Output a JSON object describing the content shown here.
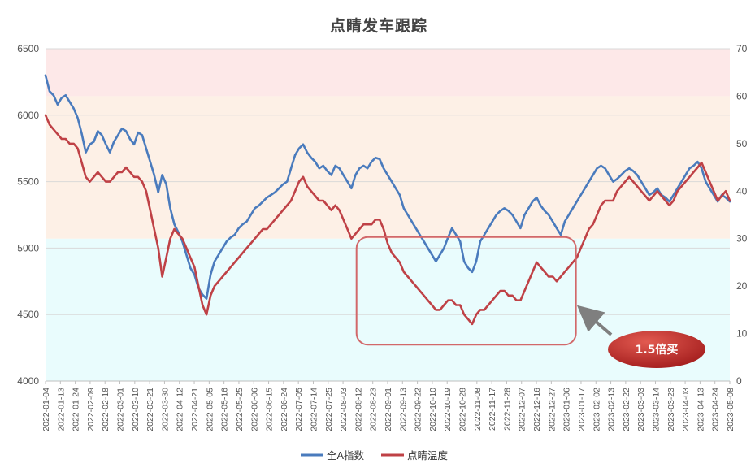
{
  "chart_data": {
    "type": "line",
    "title": "点睛发车跟踪",
    "y_left": {
      "lim": [
        4000,
        6500
      ],
      "ticks": [
        4000,
        4500,
        5000,
        5500,
        6000,
        6500
      ]
    },
    "y_right": {
      "lim": [
        0,
        70
      ],
      "ticks": [
        0,
        10,
        20,
        30,
        40,
        50,
        60,
        70
      ]
    },
    "x_tick_labels": [
      "2022-01-04",
      "2022-01-13",
      "2022-01-24",
      "2022-02-09",
      "2022-02-18",
      "2022-03-01",
      "2022-03-10",
      "2022-03-21",
      "2022-03-30",
      "2022-04-12",
      "2022-04-21",
      "2022-05-05",
      "2022-05-16",
      "2022-05-25",
      "2022-06-06",
      "2022-06-15",
      "2022-06-24",
      "2022-07-05",
      "2022-07-14",
      "2022-07-25",
      "2022-08-03",
      "2022-08-12",
      "2022-08-23",
      "2022-09-01",
      "2022-09-13",
      "2022-09-22",
      "2022-10-10",
      "2022-10-19",
      "2022-10-28",
      "2022-11-08",
      "2022-11-17",
      "2022-11-28",
      "2022-12-07",
      "2022-12-16",
      "2022-12-27",
      "2023-01-06",
      "2023-01-17",
      "2023-02-02",
      "2023-02-13",
      "2023-02-22",
      "2023-03-03",
      "2023-03-14",
      "2023-03-23",
      "2023-04-03",
      "2023-04-13",
      "2023-04-24",
      "2023-05-08"
    ],
    "bands": [
      {
        "axis": "right",
        "from": 0,
        "to": 30,
        "color": "#e9fcfd"
      },
      {
        "axis": "right",
        "from": 30,
        "to": 60,
        "color": "#fdf0e6"
      },
      {
        "axis": "right",
        "from": 60,
        "to": 70,
        "color": "#fde8e8"
      }
    ],
    "grid": true,
    "legend_position": "bottom",
    "series": [
      {
        "name": "全A指数",
        "axis": "left",
        "color": "#4a7bbd",
        "values": [
          6300,
          6180,
          6150,
          6080,
          6130,
          6150,
          6100,
          6050,
          5980,
          5860,
          5720,
          5780,
          5800,
          5880,
          5850,
          5780,
          5720,
          5800,
          5850,
          5900,
          5880,
          5820,
          5780,
          5870,
          5850,
          5750,
          5650,
          5550,
          5420,
          5550,
          5480,
          5300,
          5180,
          5120,
          5050,
          4950,
          4850,
          4800,
          4700,
          4650,
          4620,
          4800,
          4900,
          4950,
          5000,
          5050,
          5080,
          5100,
          5150,
          5180,
          5200,
          5250,
          5300,
          5320,
          5350,
          5380,
          5400,
          5420,
          5450,
          5480,
          5500,
          5600,
          5700,
          5750,
          5780,
          5720,
          5680,
          5650,
          5600,
          5620,
          5580,
          5550,
          5620,
          5600,
          5550,
          5500,
          5450,
          5550,
          5600,
          5620,
          5600,
          5650,
          5680,
          5670,
          5600,
          5550,
          5500,
          5450,
          5400,
          5300,
          5250,
          5200,
          5150,
          5100,
          5050,
          5000,
          4950,
          4900,
          4950,
          5000,
          5080,
          5150,
          5100,
          5050,
          4900,
          4850,
          4820,
          4900,
          5050,
          5100,
          5150,
          5200,
          5250,
          5280,
          5300,
          5280,
          5250,
          5200,
          5150,
          5250,
          5300,
          5350,
          5380,
          5320,
          5280,
          5250,
          5200,
          5150,
          5100,
          5200,
          5250,
          5300,
          5350,
          5400,
          5450,
          5500,
          5550,
          5600,
          5620,
          5600,
          5550,
          5500,
          5520,
          5550,
          5580,
          5600,
          5580,
          5550,
          5500,
          5450,
          5400,
          5420,
          5450,
          5400,
          5380,
          5350,
          5400,
          5450,
          5500,
          5550,
          5600,
          5620,
          5650,
          5600,
          5500,
          5450,
          5400,
          5350,
          5400,
          5380,
          5350
        ]
      },
      {
        "name": "点睛温度",
        "axis": "right",
        "color": "#bf4146",
        "values": [
          56,
          54,
          53,
          52,
          51,
          51,
          50,
          50,
          49,
          46,
          43,
          42,
          43,
          44,
          43,
          42,
          42,
          43,
          44,
          44,
          45,
          44,
          43,
          43,
          42,
          40,
          36,
          32,
          28,
          22,
          26,
          30,
          32,
          31,
          30,
          28,
          26,
          24,
          20,
          16,
          14,
          18,
          20,
          21,
          22,
          23,
          24,
          25,
          26,
          27,
          28,
          29,
          30,
          31,
          32,
          32,
          33,
          34,
          35,
          36,
          37,
          38,
          40,
          42,
          43,
          41,
          40,
          39,
          38,
          38,
          37,
          36,
          37,
          36,
          34,
          32,
          30,
          31,
          32,
          33,
          33,
          33,
          34,
          34,
          32,
          29,
          27,
          26,
          25,
          23,
          22,
          21,
          20,
          19,
          18,
          17,
          16,
          15,
          15,
          16,
          17,
          17,
          16,
          16,
          14,
          13,
          12,
          14,
          15,
          15,
          16,
          17,
          18,
          19,
          19,
          18,
          18,
          17,
          17,
          19,
          21,
          23,
          25,
          24,
          23,
          22,
          22,
          21,
          22,
          23,
          24,
          25,
          26,
          28,
          30,
          32,
          33,
          35,
          37,
          38,
          38,
          38,
          40,
          41,
          42,
          43,
          42,
          41,
          40,
          39,
          38,
          39,
          40,
          39,
          38,
          37,
          38,
          40,
          41,
          42,
          43,
          44,
          45,
          46,
          44,
          42,
          40,
          38,
          39,
          40,
          38
        ]
      }
    ],
    "annotation": {
      "label": "1.5倍买",
      "box": {
        "from": "2022-08-23",
        "to": "2023-01-06",
        "axis": "right",
        "low": 8,
        "high": 30
      }
    }
  }
}
